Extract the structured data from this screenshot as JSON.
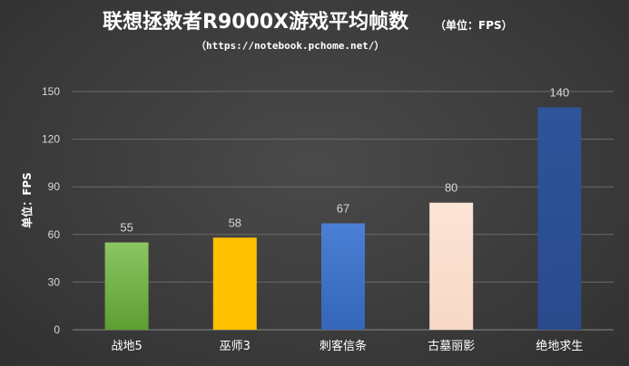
{
  "chart_data": {
    "type": "bar",
    "title": "联想拯救者R9000X游戏平均帧数",
    "title_suffix": "（单位：FPS）",
    "subtitle": "（https://notebook.pchome.net/）",
    "ylabel": "单位：FPS",
    "xlabel": "",
    "categories": [
      "战地5",
      "巫师3",
      "刺客信条",
      "古墓丽影",
      "绝地求生"
    ],
    "values": [
      55,
      58,
      67,
      80,
      140
    ],
    "data_labels": [
      "55",
      "58",
      "67",
      "80",
      "140"
    ],
    "ylim": [
      0,
      150
    ],
    "yticks": [
      0,
      30,
      60,
      90,
      120,
      150
    ],
    "ytick_labels": [
      "0",
      "30",
      "60",
      "90",
      "120",
      "150"
    ],
    "grid": true,
    "bar_colors": [
      [
        "#8cc663",
        "#5e9e32"
      ],
      [
        "#ffc000",
        "#ffc000"
      ],
      [
        "#4a7fd4",
        "#3566b8"
      ],
      [
        "#fce4d6",
        "#f8d8c6"
      ],
      [
        "#2f549a",
        "#2a4a8c"
      ]
    ]
  }
}
